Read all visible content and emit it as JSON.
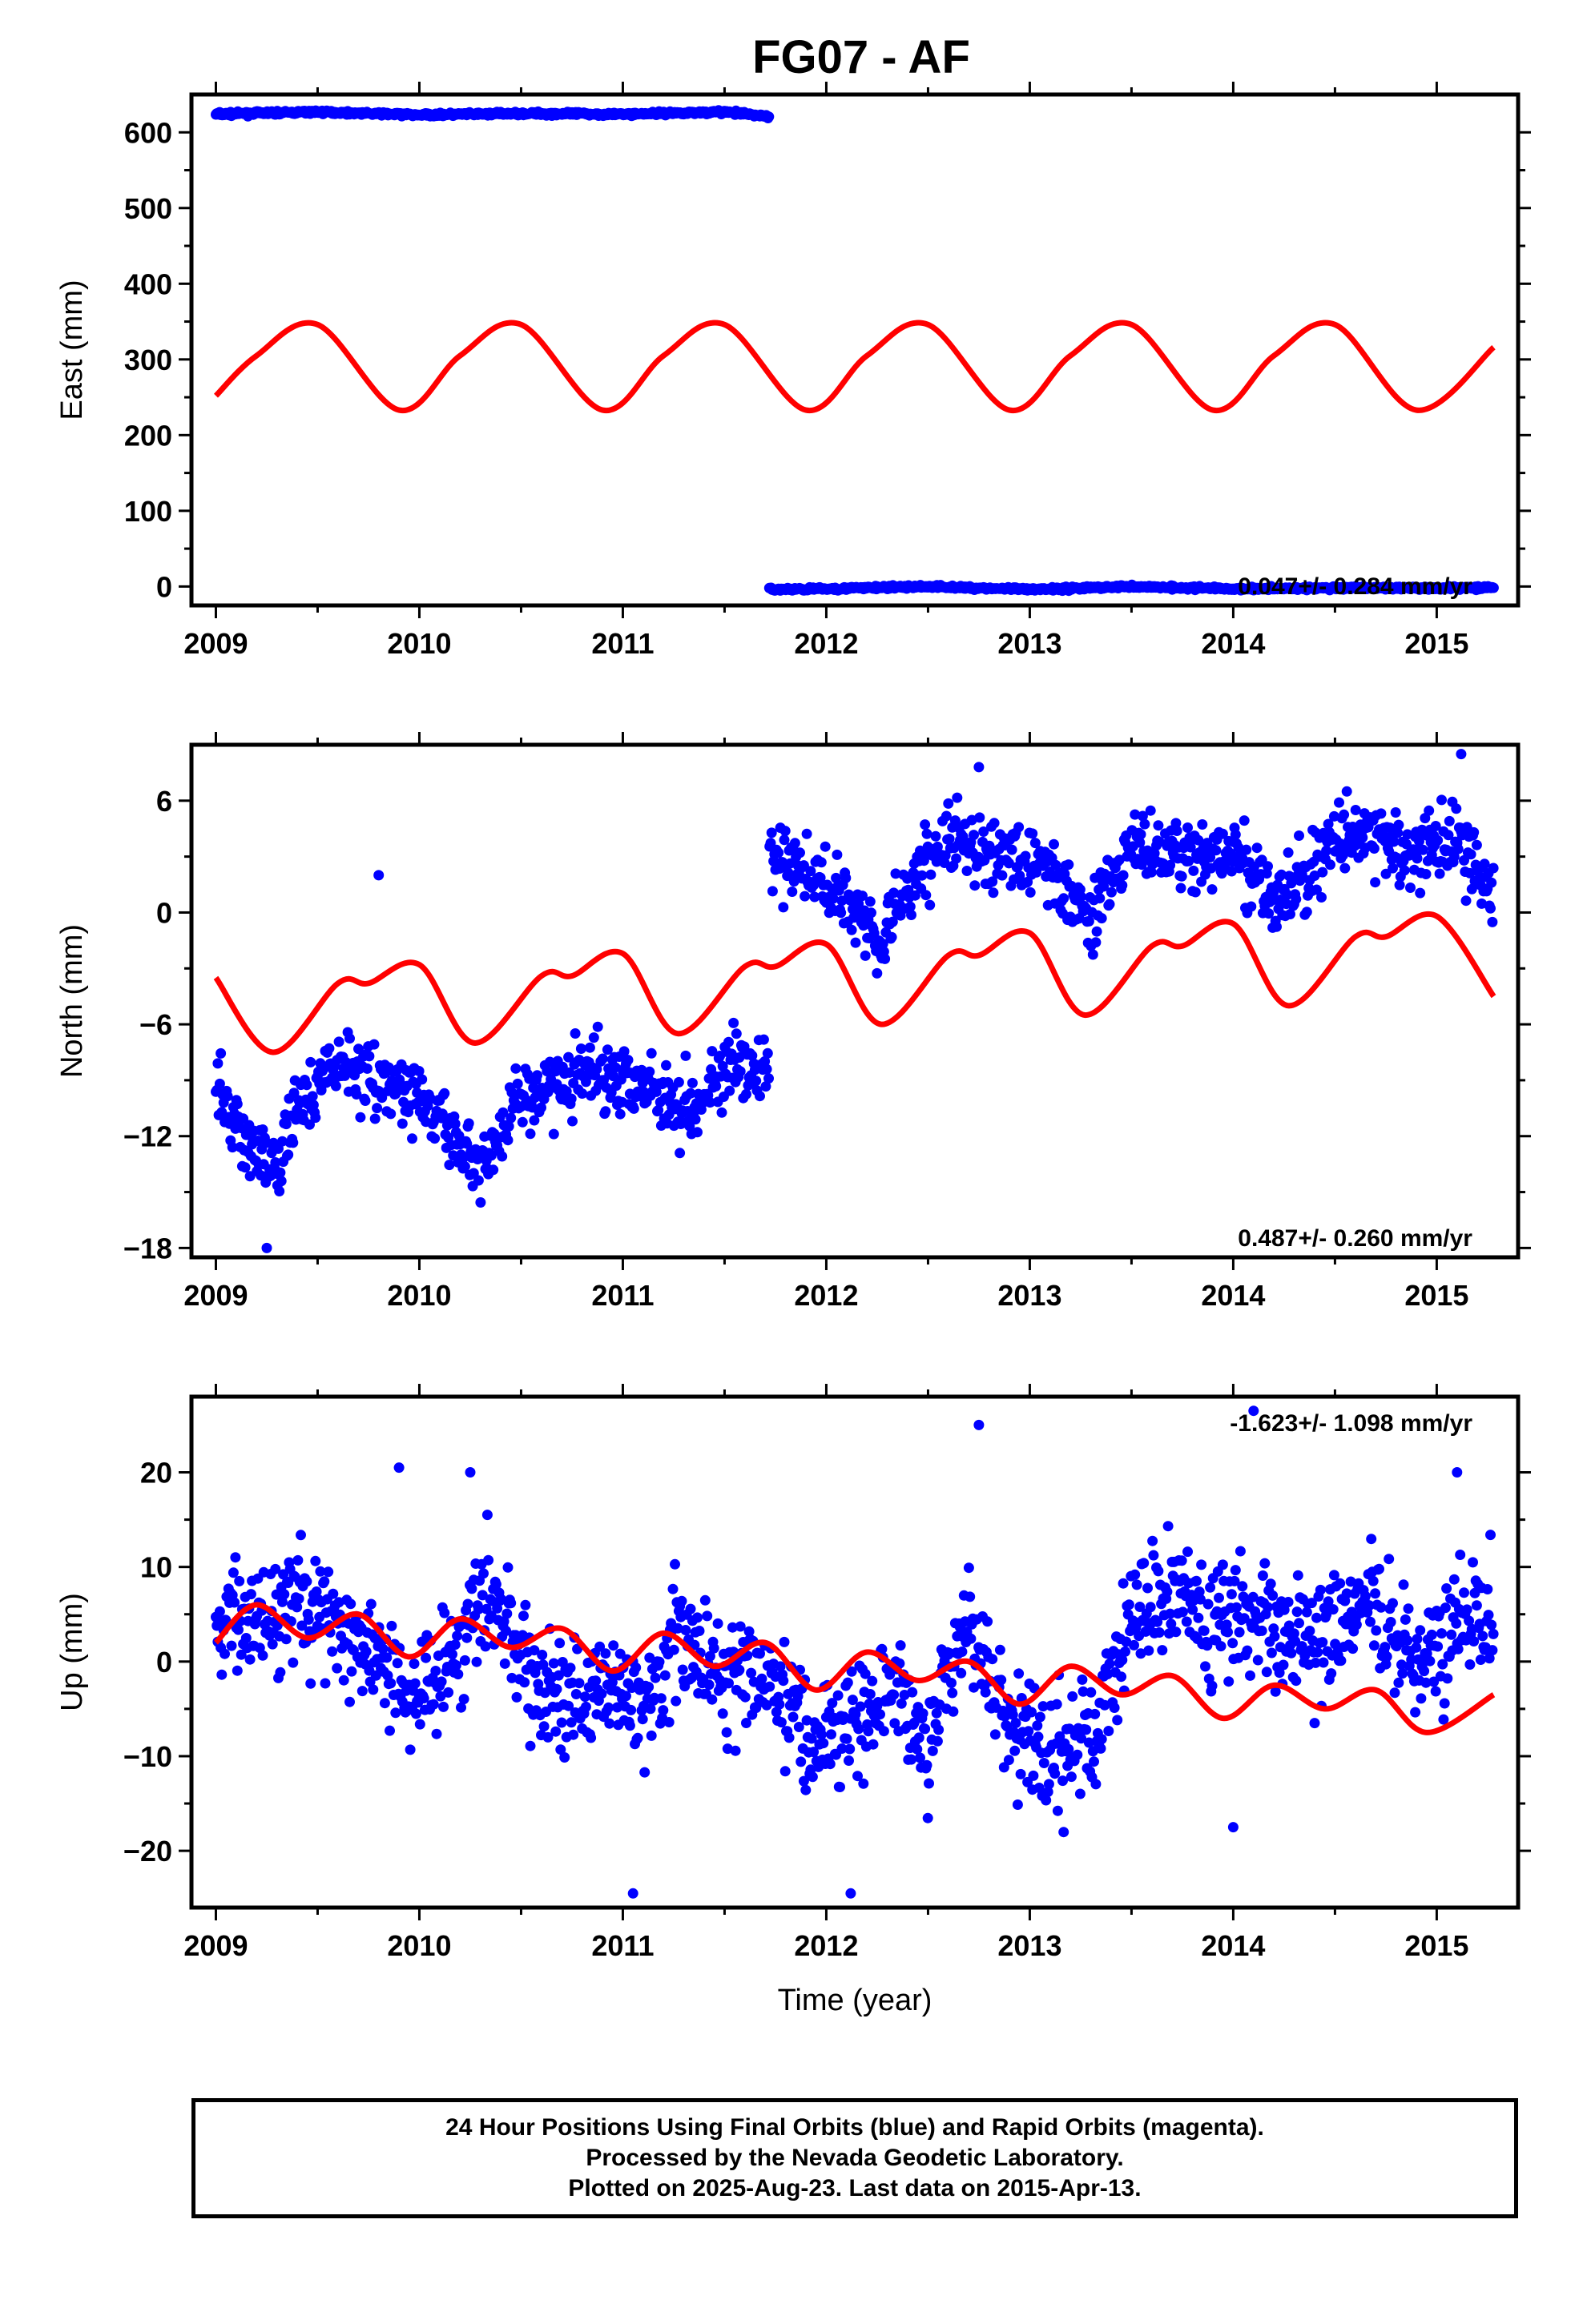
{
  "title": "FG07 - AF",
  "footer": {
    "line1": "24 Hour Positions Using Final Orbits (blue) and Rapid Orbits (magenta).",
    "line2": "Processed by the Nevada Geodetic Laboratory.",
    "line3": "Plotted on 2025-Aug-23. Last data on 2015-Apr-13."
  },
  "colors": {
    "data": "#0000ff",
    "model": "#ff0000",
    "axis": "#000000"
  },
  "chart_data": [
    {
      "type": "scatter",
      "ylabel": "East (mm)",
      "xlabel": "",
      "xlim": [
        2008.88,
        2015.4
      ],
      "ylim": [
        -25,
        650
      ],
      "xticks": [
        2009,
        2010,
        2011,
        2012,
        2013,
        2014,
        2015
      ],
      "yticks": [
        0,
        100,
        200,
        300,
        400,
        500,
        600
      ],
      "rate_label": "0.047+/- 0.284 mm/yr",
      "grid": false,
      "series": [
        {
          "x": [
            2009.0,
            2009.5,
            2010.0,
            2010.5,
            2011.0,
            2011.5,
            2011.72
          ],
          "y": [
            624,
            627,
            623,
            625,
            624,
            627,
            621
          ]
        },
        {
          "x": [
            2011.72,
            2012.0,
            2012.5,
            2013.0,
            2013.5,
            2014.0,
            2014.5,
            2015.0,
            2015.28
          ],
          "y": [
            -4,
            -3,
            0,
            -4,
            0,
            -3,
            -2,
            -2,
            -1
          ]
        }
      ],
      "model": {
        "x": [
          2009.0,
          2009.2,
          2009.5,
          2009.9,
          2010.2,
          2010.5,
          2010.9,
          2011.2,
          2011.5,
          2011.9,
          2012.2,
          2012.5,
          2012.9,
          2013.2,
          2013.5,
          2013.9,
          2014.2,
          2014.5,
          2014.9,
          2015.28
        ],
        "y": [
          252,
          305,
          346,
          233,
          305,
          346,
          233,
          305,
          346,
          233,
          305,
          346,
          233,
          305,
          346,
          233,
          305,
          346,
          233,
          316
        ]
      }
    },
    {
      "type": "scatter",
      "ylabel": "North (mm)",
      "xlabel": "",
      "xlim": [
        2008.88,
        2015.4
      ],
      "ylim": [
        -18.5,
        9
      ],
      "xticks": [
        2009,
        2010,
        2011,
        2012,
        2013,
        2014,
        2015
      ],
      "yticks": [
        -18,
        -12,
        -6,
        0,
        6
      ],
      "rate_label": "0.487+/- 0.260 mm/yr",
      "grid": false,
      "points": [
        [
          2009.0,
          -9.5
        ],
        [
          2009.1,
          -11.5
        ],
        [
          2009.2,
          -13.0
        ],
        [
          2009.3,
          -14.0
        ],
        [
          2009.4,
          -10.5
        ],
        [
          2009.6,
          -8.0
        ],
        [
          2009.8,
          -9.0
        ],
        [
          2010.0,
          -10.0
        ],
        [
          2010.2,
          -12.5
        ],
        [
          2010.3,
          -13.5
        ],
        [
          2010.5,
          -10.0
        ],
        [
          2010.7,
          -9.0
        ],
        [
          2010.9,
          -8.5
        ],
        [
          2011.1,
          -9.0
        ],
        [
          2011.3,
          -10.5
        ],
        [
          2011.5,
          -8.5
        ],
        [
          2011.7,
          -8.5
        ],
        [
          2011.75,
          3.0
        ],
        [
          2011.9,
          2.0
        ],
        [
          2012.1,
          1.0
        ],
        [
          2012.25,
          -1.5
        ],
        [
          2012.45,
          2.0
        ],
        [
          2012.6,
          4.0
        ],
        [
          2012.8,
          3.0
        ],
        [
          2013.0,
          3.0
        ],
        [
          2013.2,
          1.0
        ],
        [
          2013.3,
          0.0
        ],
        [
          2013.5,
          3.5
        ],
        [
          2013.7,
          3.0
        ],
        [
          2014.0,
          3.0
        ],
        [
          2014.25,
          0.5
        ],
        [
          2014.5,
          4.0
        ],
        [
          2014.7,
          4.0
        ],
        [
          2014.9,
          3.0
        ],
        [
          2015.1,
          4.0
        ],
        [
          2015.28,
          1.0
        ],
        [
          2009.25,
          -18.0
        ],
        [
          2009.8,
          2.0
        ],
        [
          2012.75,
          7.8
        ],
        [
          2015.12,
          8.5
        ]
      ],
      "model": {
        "x": [
          2009.0,
          2009.28,
          2009.6,
          2009.75,
          2010.0,
          2010.27,
          2010.6,
          2010.75,
          2011.0,
          2011.27,
          2011.6,
          2011.75,
          2012.0,
          2012.27,
          2012.6,
          2012.75,
          2013.0,
          2013.27,
          2013.6,
          2013.75,
          2014.0,
          2014.27,
          2014.6,
          2014.75,
          2015.0,
          2015.28
        ],
        "y": [
          -3.5,
          -7.5,
          -3.8,
          -3.8,
          -2.8,
          -7.0,
          -3.4,
          -3.4,
          -2.2,
          -6.5,
          -2.9,
          -2.9,
          -1.7,
          -6.0,
          -2.3,
          -2.3,
          -1.1,
          -5.5,
          -1.8,
          -1.8,
          -0.6,
          -5.0,
          -1.3,
          -1.3,
          -0.2,
          -4.5
        ]
      }
    },
    {
      "type": "scatter",
      "ylabel": "Up (mm)",
      "xlabel": "Time (year)",
      "xlim": [
        2008.88,
        2015.4
      ],
      "ylim": [
        -26,
        28
      ],
      "xticks": [
        2009,
        2010,
        2011,
        2012,
        2013,
        2014,
        2015
      ],
      "yticks": [
        -20,
        -10,
        0,
        10,
        20
      ],
      "rate_label": "-1.623+/- 1.098 mm/yr",
      "grid": false,
      "points": [
        [
          2009.0,
          3
        ],
        [
          2009.2,
          5
        ],
        [
          2009.4,
          8
        ],
        [
          2009.6,
          3
        ],
        [
          2009.8,
          0
        ],
        [
          2010.0,
          -3
        ],
        [
          2010.2,
          2
        ],
        [
          2010.35,
          8
        ],
        [
          2010.5,
          0
        ],
        [
          2010.7,
          -5
        ],
        [
          2010.9,
          -3
        ],
        [
          2011.1,
          -4
        ],
        [
          2011.3,
          3
        ],
        [
          2011.5,
          -2
        ],
        [
          2011.7,
          -1
        ],
        [
          2011.9,
          -8
        ],
        [
          2012.1,
          -6
        ],
        [
          2012.3,
          -2
        ],
        [
          2012.5,
          -8
        ],
        [
          2012.7,
          5
        ],
        [
          2012.9,
          -8
        ],
        [
          2013.1,
          -10
        ],
        [
          2013.3,
          -8
        ],
        [
          2013.5,
          5
        ],
        [
          2013.7,
          8
        ],
        [
          2013.9,
          4
        ],
        [
          2014.1,
          5
        ],
        [
          2014.3,
          2
        ],
        [
          2014.5,
          3
        ],
        [
          2014.7,
          6
        ],
        [
          2014.9,
          0
        ],
        [
          2015.1,
          4
        ],
        [
          2015.28,
          6
        ],
        [
          2009.9,
          20.5
        ],
        [
          2010.25,
          20
        ],
        [
          2011.05,
          -24.5
        ],
        [
          2012.12,
          -24.5
        ],
        [
          2012.75,
          25
        ],
        [
          2014.1,
          26.5
        ],
        [
          2014.0,
          -17.5
        ],
        [
          2015.1,
          20
        ]
      ],
      "model": {
        "x": [
          2009.0,
          2009.2,
          2009.45,
          2009.7,
          2009.95,
          2010.2,
          2010.45,
          2010.7,
          2010.95,
          2011.2,
          2011.45,
          2011.7,
          2011.95,
          2012.2,
          2012.45,
          2012.7,
          2012.95,
          2013.2,
          2013.45,
          2013.7,
          2013.95,
          2014.2,
          2014.45,
          2014.7,
          2014.95,
          2015.28
        ],
        "y": [
          2,
          6,
          2.5,
          5,
          0.5,
          4.5,
          1.5,
          3.5,
          -1,
          3,
          -0.5,
          2,
          -3,
          1,
          -2,
          0,
          -4.5,
          -0.5,
          -3.5,
          -1.5,
          -6,
          -2.5,
          -5,
          -3,
          -7.5,
          -3.5
        ]
      }
    }
  ]
}
